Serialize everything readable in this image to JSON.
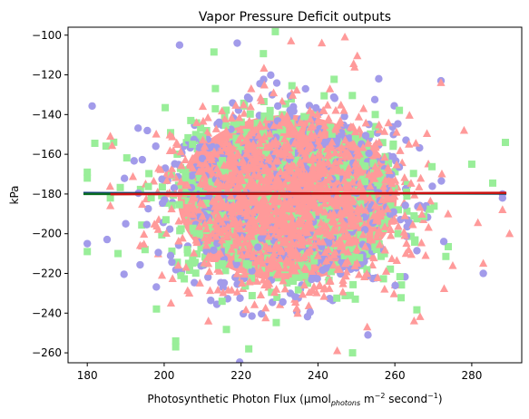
{
  "chart_data": {
    "type": "scatter",
    "title": "Vapor Pressure Deficit outputs",
    "xlabel": {
      "main": "Photosynthetic Photon Flux (µmol",
      "subscript": "photons",
      "mid": " m",
      "sup1": "−2",
      "tail": " second",
      "sup2": "−1",
      "close": ")"
    },
    "ylabel": "kPa",
    "xlim": [
      175,
      293
    ],
    "ylim": [
      -265,
      -96
    ],
    "xticks": [
      180,
      200,
      220,
      240,
      260,
      280
    ],
    "yticks": [
      -100,
      -120,
      -140,
      -160,
      -180,
      -200,
      -220,
      -240,
      -260
    ],
    "grid": false,
    "cloud": {
      "x_center": 232,
      "x_std": 15,
      "y_center": -182,
      "y_std": 22,
      "core_color": "#ff9999",
      "series": [
        {
          "marker": "circle",
          "color": "#a29bea"
        },
        {
          "marker": "square",
          "color": "#99ee99"
        },
        {
          "marker": "triangle",
          "color": "#ff9a9a"
        }
      ]
    },
    "outliers": [
      {
        "series": 1,
        "x": 180,
        "y": -169
      },
      {
        "series": 1,
        "x": 180,
        "y": -172
      },
      {
        "series": 0,
        "x": 180,
        "y": -205
      },
      {
        "series": 1,
        "x": 180,
        "y": -209
      },
      {
        "series": 2,
        "x": 186,
        "y": -151
      },
      {
        "series": 1,
        "x": 186,
        "y": -182
      },
      {
        "series": 2,
        "x": 186,
        "y": -186
      },
      {
        "series": 0,
        "x": 204,
        "y": -105
      },
      {
        "series": 1,
        "x": 203,
        "y": -254
      },
      {
        "series": 1,
        "x": 203,
        "y": -257
      },
      {
        "series": 0,
        "x": 219,
        "y": -104
      },
      {
        "series": 2,
        "x": 233,
        "y": -103
      },
      {
        "series": 2,
        "x": 241,
        "y": -104
      },
      {
        "series": 2,
        "x": 247,
        "y": -101
      },
      {
        "series": 0,
        "x": 272,
        "y": -123
      },
      {
        "series": 2,
        "x": 272,
        "y": -124
      },
      {
        "series": 0,
        "x": 288,
        "y": -180
      },
      {
        "series": 2,
        "x": 288,
        "y": -188
      },
      {
        "series": 0,
        "x": 288,
        "y": -182
      },
      {
        "series": 0,
        "x": 283,
        "y": -220
      },
      {
        "series": 2,
        "x": 283,
        "y": -215
      },
      {
        "series": 1,
        "x": 222,
        "y": -258
      },
      {
        "series": 1,
        "x": 249,
        "y": -260
      },
      {
        "series": 2,
        "x": 245,
        "y": -259
      },
      {
        "series": 0,
        "x": 253,
        "y": -251
      },
      {
        "series": 2,
        "x": 265,
        "y": -244
      },
      {
        "series": 1,
        "x": 188,
        "y": -210
      },
      {
        "series": 0,
        "x": 190,
        "y": -195
      },
      {
        "series": 2,
        "x": 278,
        "y": -148
      },
      {
        "series": 1,
        "x": 280,
        "y": -165
      }
    ],
    "fit_lines": [
      {
        "color": "#1a3a8a",
        "x": [
          179,
          289
        ],
        "y": [
          -179.5,
          -179.8
        ],
        "width": 2.5
      },
      {
        "color": "#0b6e22",
        "x": [
          179,
          289
        ],
        "y": [
          -180.0,
          -179.6
        ],
        "width": 2.5
      },
      {
        "color": "#cc1111",
        "x": [
          186,
          289
        ],
        "y": [
          -180.1,
          -179.4
        ],
        "width": 2.5
      }
    ]
  }
}
